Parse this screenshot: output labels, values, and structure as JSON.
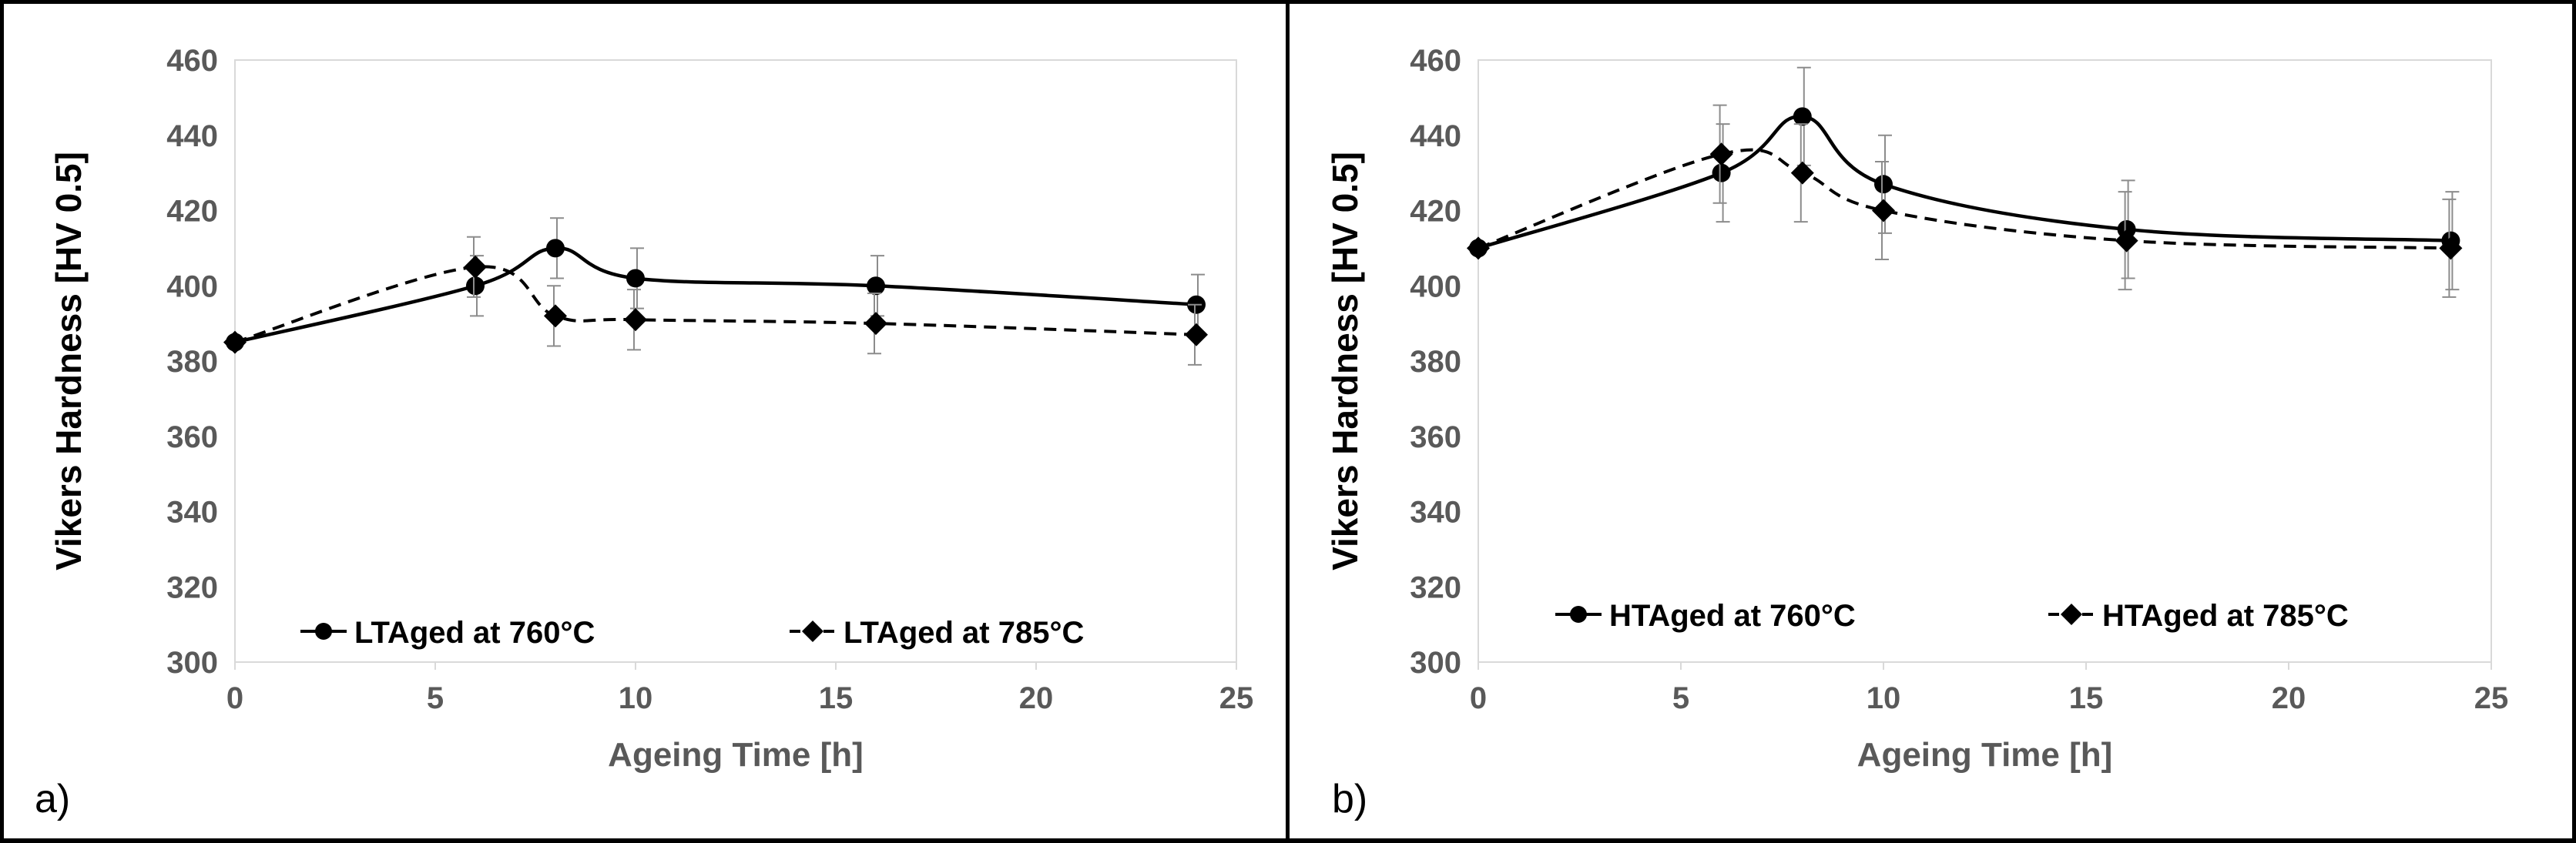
{
  "chart_data": [
    {
      "type": "line",
      "panel_label": "a)",
      "xlabel": "Ageing Time [h]",
      "ylabel": "Vikers Hardness [HV 0.5]",
      "xlim": [
        0,
        25
      ],
      "ylim": [
        300,
        460
      ],
      "x_ticks": [
        0,
        5,
        10,
        15,
        20,
        25
      ],
      "y_ticks": [
        300,
        320,
        340,
        360,
        380,
        400,
        420,
        440,
        460
      ],
      "legend_position": "bottom",
      "series": [
        {
          "name": "LTAged at 760°C",
          "marker": "circle",
          "line": "solid",
          "x": [
            0,
            6,
            8,
            10,
            16,
            24
          ],
          "values": [
            385,
            400,
            410,
            402,
            400,
            395
          ],
          "error": [
            0,
            8,
            8,
            8,
            8,
            8
          ]
        },
        {
          "name": "LTAged at 785°C",
          "marker": "diamond",
          "line": "dashed",
          "x": [
            0,
            6,
            8,
            10,
            16,
            24
          ],
          "values": [
            385,
            405,
            392,
            391,
            390,
            387
          ],
          "error": [
            0,
            8,
            8,
            8,
            8,
            8
          ]
        }
      ]
    },
    {
      "type": "line",
      "panel_label": "b)",
      "xlabel": "Ageing Time [h]",
      "ylabel": "Vikers Hardness [HV 0.5]",
      "xlim": [
        0,
        25
      ],
      "ylim": [
        300,
        460
      ],
      "x_ticks": [
        0,
        5,
        10,
        15,
        20,
        25
      ],
      "y_ticks": [
        300,
        320,
        340,
        360,
        380,
        400,
        420,
        440,
        460
      ],
      "legend_position": "bottom",
      "series": [
        {
          "name": "HTAged at 760°C",
          "marker": "circle",
          "line": "solid",
          "x": [
            0,
            6,
            8,
            10,
            16,
            24
          ],
          "values": [
            410,
            430,
            445,
            427,
            415,
            412
          ],
          "error": [
            0,
            13,
            13,
            13,
            13,
            13
          ]
        },
        {
          "name": "HTAged at 785°C",
          "marker": "diamond",
          "line": "dashed",
          "x": [
            0,
            6,
            8,
            10,
            16,
            24
          ],
          "values": [
            410,
            435,
            430,
            420,
            412,
            410
          ],
          "error": [
            0,
            13,
            13,
            13,
            13,
            13
          ]
        }
      ]
    }
  ]
}
